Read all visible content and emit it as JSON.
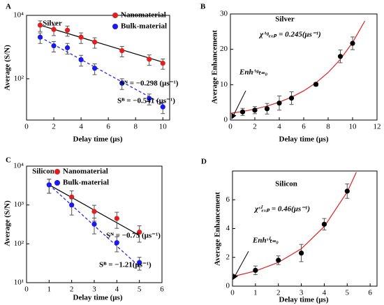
{
  "chart_data": [
    {
      "type": "scatter",
      "panel": "A",
      "title": "Silver",
      "xlabel": "Delay time (μs)",
      "ylabel": "Average (S/N)",
      "yscale": "log",
      "xlim": [
        0,
        10.5
      ],
      "ylim": [
        5,
        10000
      ],
      "xticks": [
        0,
        2,
        4,
        6,
        8,
        10
      ],
      "yticks": [
        {
          "value": 100,
          "label": "10²"
        },
        {
          "value": 10000,
          "label": "10⁴"
        }
      ],
      "annotations": [
        "Sᴺ = −0.298 (μs⁻¹)",
        "Sᴮ = −0.541 (μs⁻¹)"
      ],
      "series": [
        {
          "name": "Nanomaterial",
          "color": "#e02020",
          "x": [
            1,
            2,
            3,
            4,
            5,
            7,
            9,
            10
          ],
          "values": [
            4900,
            3600,
            3400,
            2050,
            1440,
            770,
            415,
            310
          ],
          "errors": [
            1800,
            1300,
            1200,
            750,
            520,
            280,
            150,
            110
          ]
        },
        {
          "name": "Bulk-material",
          "color": "#1a1aee",
          "x": [
            1,
            2,
            3,
            4,
            5,
            7,
            9,
            10
          ],
          "values": [
            2050,
            1100,
            950,
            400,
            215,
            73,
            24,
            13
          ],
          "errors": [
            750,
            400,
            350,
            150,
            80,
            27,
            9,
            5
          ]
        }
      ],
      "fits": [
        {
          "color": "#000000",
          "dashed": false,
          "x": [
            1,
            10
          ],
          "values": [
            4900,
            335
          ]
        },
        {
          "color": "#1a1aee",
          "dashed": true,
          "x": [
            1,
            10
          ],
          "values": [
            2050,
            15.8
          ]
        }
      ]
    },
    {
      "type": "scatter",
      "panel": "B",
      "title": "Silver",
      "xlabel": "Delay time (μs)",
      "ylabel": "Average Enhancement",
      "xlim": [
        0,
        12
      ],
      "ylim": [
        0,
        30
      ],
      "xticks": [
        0,
        2,
        4,
        6,
        8,
        10,
        12
      ],
      "yticks": [
        0,
        10,
        20,
        30
      ],
      "annotations": [
        "χᴬᵍₑₓₚ = 0.245(μs⁻¹)",
        "Enhᴬᵍₜ₌₀"
      ],
      "series": [
        {
          "color": "#000000",
          "x": [
            1,
            2,
            3,
            4,
            5,
            7,
            9,
            10
          ],
          "values": [
            2.3,
            2.8,
            3.2,
            4.8,
            6.2,
            10.1,
            18,
            21.7
          ],
          "errors": [
            1,
            1,
            1.5,
            2,
            1.8,
            0.5,
            1.8,
            1.8
          ]
        }
      ],
      "fits": [
        {
          "color": "#e02020",
          "dashed": false,
          "x": [
            0,
            1,
            2,
            3,
            4,
            5,
            6,
            7,
            8,
            9,
            10,
            11
          ],
          "values": [
            1.9,
            2.43,
            3.1,
            3.96,
            5.06,
            6.46,
            8.25,
            10.53,
            13.45,
            17.17,
            21.93,
            28
          ]
        }
      ]
    },
    {
      "type": "scatter",
      "panel": "C",
      "title": "Silicon",
      "xlabel": "Delay time (μs)",
      "ylabel": "Average (S/N)",
      "yscale": "log",
      "xlim": [
        0,
        6
      ],
      "ylim": [
        10,
        10000
      ],
      "xticks": [
        0,
        1,
        2,
        3,
        4,
        5,
        6
      ],
      "yticks": [
        {
          "value": 10,
          "label": "10¹"
        },
        {
          "value": 100,
          "label": "10²"
        },
        {
          "value": 1000,
          "label": "10³"
        },
        {
          "value": 10000,
          "label": "10⁴"
        }
      ],
      "annotations": [
        "Sᴺ = −0.75 (μs⁻¹)",
        "Sᴮ = −1.21(μs⁻¹)"
      ],
      "series": [
        {
          "name": "Nanomaterial",
          "color": "#e02020",
          "x": [
            1,
            2,
            3,
            4,
            5
          ],
          "values": [
            3300,
            1600,
            680,
            450,
            200
          ],
          "errors": [
            1300,
            700,
            300,
            200,
            90
          ]
        },
        {
          "name": "Bulk-material",
          "color": "#1a1aee",
          "x": [
            1,
            2,
            3,
            4,
            5
          ],
          "values": [
            3300,
            1000,
            320,
            107,
            33
          ],
          "errors": [
            1300,
            450,
            140,
            45,
            12
          ]
        }
      ],
      "fits": [
        {
          "color": "#000000",
          "dashed": false,
          "x": [
            1,
            5
          ],
          "values": [
            3300,
            165
          ]
        },
        {
          "color": "#1a1aee",
          "dashed": true,
          "x": [
            1,
            5
          ],
          "values": [
            3300,
            26
          ]
        }
      ]
    },
    {
      "type": "scatter",
      "panel": "D",
      "title": "Silicon",
      "xlabel": "Delay time (μs)",
      "ylabel": "Average Enhancement",
      "xlim": [
        0,
        6.3
      ],
      "ylim": [
        0,
        8
      ],
      "xticks": [
        0,
        1,
        2,
        3,
        4,
        5,
        6
      ],
      "yticks": [
        0,
        2,
        4,
        6
      ],
      "annotations": [
        "χˢⁱₑₓₚ = 0.46(μs⁻¹)",
        "Enhˢⁱₜ₌₀"
      ],
      "series": [
        {
          "color": "#000000",
          "x": [
            1,
            2,
            3,
            4,
            5
          ],
          "values": [
            1.1,
            1.8,
            2.3,
            4.3,
            6.6
          ],
          "errors": [
            0.3,
            0.3,
            0.6,
            0.4,
            0.5
          ]
        }
      ],
      "fits": [
        {
          "color": "#e02020",
          "dashed": false,
          "x": [
            0,
            1,
            2,
            3,
            4,
            5,
            5.4
          ],
          "values": [
            0.66,
            1.05,
            1.65,
            2.6,
            4.14,
            6.54,
            7.92
          ]
        }
      ]
    }
  ]
}
